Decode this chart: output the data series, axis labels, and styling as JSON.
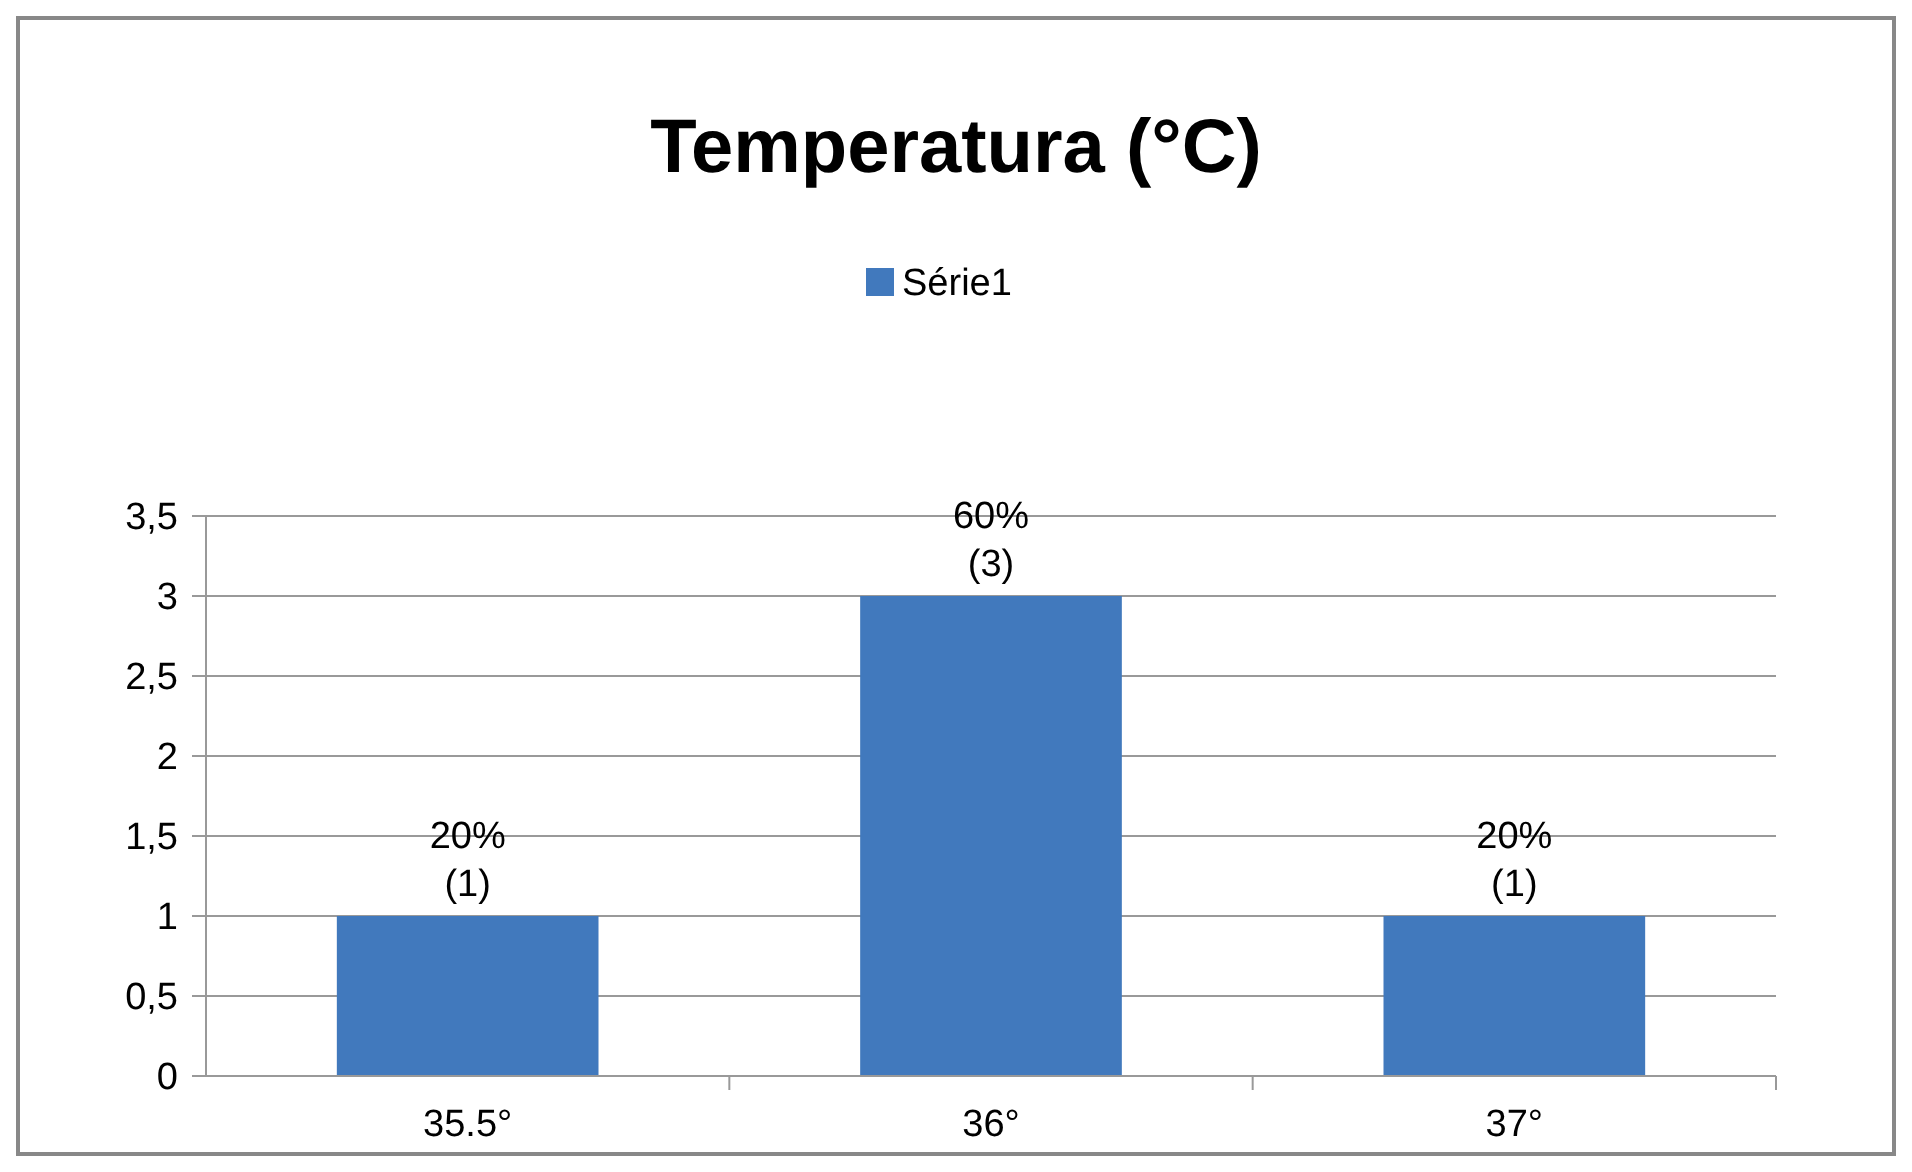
{
  "chart_data": {
    "type": "bar",
    "title": "Temperatura (°C)",
    "categories": [
      "35.5°",
      "36°",
      "37°"
    ],
    "series": [
      {
        "name": "Série1",
        "color": "#4179bd",
        "values": [
          1,
          3,
          1
        ],
        "value_labels": [
          "20%\n(1)",
          "60%\n(3)",
          "20%\n(1)"
        ]
      }
    ],
    "ylim": [
      0,
      3.5
    ],
    "yticks": [
      0,
      {
        "value": 0.5,
        "label": "0,5"
      },
      1,
      {
        "value": 1.5,
        "label": "1,5"
      },
      2,
      {
        "value": 2.5,
        "label": "2,5"
      },
      3,
      {
        "value": 3.5,
        "label": "3,5"
      }
    ],
    "grid": "y",
    "legend": "top"
  }
}
